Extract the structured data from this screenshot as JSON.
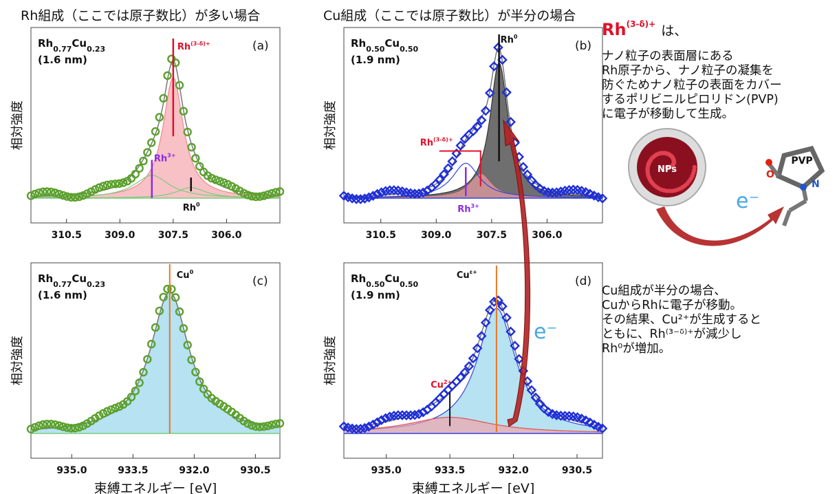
{
  "headings": {
    "left": "Rh組成（ここでは原子数比）が多い場合",
    "right": "Cu組成（ここでは原子数比）が半分の場合"
  },
  "common": {
    "ylabel": "相対強度",
    "xlabel": "束縛エネルギー [eV]",
    "electron": "e⁻"
  },
  "colors": {
    "green_data": "#5aa02c",
    "blue_data": "#1f2fd6",
    "red_fill": "#f4a0a8",
    "black_fill": "#222222",
    "cyan_fill": "#8fd3ea",
    "red_label": "#e0102a",
    "purple_label": "#8a2be2",
    "orange_marker": "#e87722",
    "arrow": "#b22222"
  },
  "chart_data": [
    {
      "type": "line",
      "panel": "(a)",
      "composition": "Rh0.77Cu0.23",
      "size": "(1.6 nm)",
      "xlim": [
        311.5,
        304.5
      ],
      "xticks": [
        "310.5",
        "309.0",
        "307.5",
        "306.0"
      ],
      "xtick_values": [
        310.5,
        309.0,
        307.5,
        306.0
      ],
      "ylabel": "相対強度",
      "series": [
        {
          "label": "Rh(3-δ)+",
          "center": 307.5,
          "height": 1.0
        },
        {
          "label": "Rh3+",
          "center": 308.1,
          "height": 0.25
        },
        {
          "label": "Rh0",
          "center": 307.0,
          "height": 0.12
        }
      ],
      "labels": {
        "main": "Rh",
        "main_sup": "(3-δ)+",
        "minor": "Rh",
        "minor_sup": "3+",
        "zero": "Rh",
        "zero_sup": "0"
      }
    },
    {
      "type": "line",
      "panel": "(b)",
      "composition": "Rh0.50Cu0.50",
      "size": "(1.9 nm)",
      "xlim": [
        311.5,
        304.5
      ],
      "xticks": [
        "310.5",
        "309.0",
        "307.5",
        "306.0"
      ],
      "xtick_values": [
        310.5,
        309.0,
        307.5,
        306.0
      ],
      "ylabel": "相対強度",
      "series": [
        {
          "label": "Rh0",
          "center": 307.3,
          "height": 1.0
        },
        {
          "label": "Rh(3-δ)+",
          "center": 307.8,
          "height": 0.18
        },
        {
          "label": "Rh3+",
          "center": 308.2,
          "height": 0.25
        }
      ],
      "labels": {
        "main": "Rh",
        "main_sup": "0",
        "mid": "Rh",
        "mid_sup": "(3-δ)+",
        "minor": "Rh",
        "minor_sup": "3+"
      }
    },
    {
      "type": "line",
      "panel": "(c)",
      "composition": "Rh0.77Cu0.23",
      "size": "(1.6 nm)",
      "xlim": [
        936.0,
        929.9
      ],
      "xticks": [
        "935.0",
        "933.5",
        "932.0",
        "930.5"
      ],
      "xtick_values": [
        935.0,
        933.5,
        932.0,
        930.5
      ],
      "xlabel": "束縛エネルギー [eV]",
      "ylabel": "相対強度",
      "series": [
        {
          "label": "Cu0",
          "center": 932.6,
          "height": 1.0
        }
      ],
      "labels": {
        "main": "Cu",
        "main_sup": "0"
      }
    },
    {
      "type": "line",
      "panel": "(d)",
      "composition": "Rh0.50Cu0.50",
      "size": "(1.9 nm)",
      "xlim": [
        936.0,
        929.9
      ],
      "xticks": [
        "935.0",
        "933.5",
        "932.0",
        "930.5"
      ],
      "xtick_values": [
        935.0,
        933.5,
        932.0,
        930.5
      ],
      "xlabel": "束縛エネルギー [eV]",
      "ylabel": "相対強度",
      "series": [
        {
          "label": "Cuε+",
          "center": 932.4,
          "height": 0.85
        },
        {
          "label": "Cu2+",
          "center": 933.5,
          "height": 0.11
        }
      ],
      "labels": {
        "main": "Cu",
        "main_sup": "ε+",
        "minor": "Cu",
        "minor_sup": "2+"
      }
    }
  ],
  "sidebar": {
    "title_main": "Rh",
    "title_sup": "(3-δ)+",
    "title_tail": "は、",
    "lines_top": [
      "ナノ粒子の表面層にある",
      "Rh原子から、ナノ粒子の凝集を",
      "防ぐためナノ粒子の表面をカバー",
      "するポリビニルピロリドン(PVP)",
      "に電子が移動して生成。"
    ],
    "np_label": "NPs",
    "pvp_label": "PVP",
    "o_label": "O",
    "n_label": "N",
    "lines_bottom": [
      "Cu組成が半分の場合、",
      "CuからRhに電子が移動。",
      "その結果、Cu²⁺が生成すると",
      "ともに、Rh⁽³⁻ᵟ⁾⁺が減少し",
      "Rh⁰が増加。"
    ]
  }
}
